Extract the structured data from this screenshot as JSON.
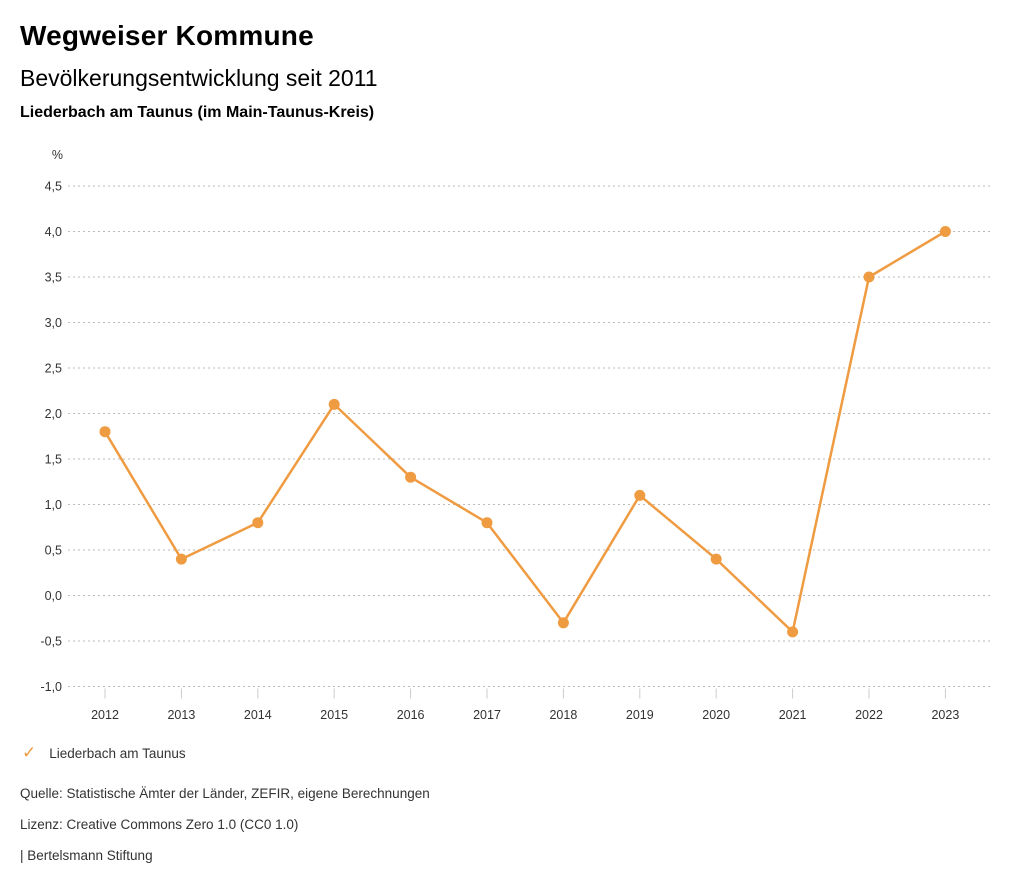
{
  "header": {
    "title": "Wegweiser Kommune",
    "subtitle": "Bevölkerungsentwicklung seit 2011",
    "region": "Liederbach am Taunus (im Main-Taunus-Kreis)"
  },
  "legend": {
    "check_icon": "✓",
    "label": "Liederbach am Taunus"
  },
  "footer": {
    "source": "Quelle: Statistische Ämter der Länder, ZEFIR, eigene Berechnungen",
    "license": "Lizenz: Creative Commons Zero 1.0 (CC0 1.0)",
    "attribution": "| Bertelsmann Stiftung"
  },
  "colors": {
    "accent_orange": "#EF9B42",
    "gridline": "#bbbbbb",
    "tick": "#cccccc",
    "axis_text": "#333333"
  },
  "chart_data": {
    "type": "line",
    "title": "Bevölkerungsentwicklung seit 2011",
    "subtitle": "Liederbach am Taunus (im Main-Taunus-Kreis)",
    "unit_label": "%",
    "categories": [
      "2012",
      "2013",
      "2014",
      "2015",
      "2016",
      "2017",
      "2018",
      "2019",
      "2020",
      "2021",
      "2022",
      "2023"
    ],
    "series": [
      {
        "name": "Liederbach am Taunus",
        "color": "#EF9B42",
        "values": [
          1.8,
          0.4,
          0.8,
          2.1,
          1.3,
          0.8,
          -0.3,
          1.1,
          0.4,
          -0.4,
          3.5,
          4.0
        ]
      }
    ],
    "ylim": [
      -1.0,
      4.5
    ],
    "y_ticks": [
      {
        "value": 4.5,
        "label": "4,5"
      },
      {
        "value": 4.0,
        "label": "4,0"
      },
      {
        "value": 3.5,
        "label": "3,5"
      },
      {
        "value": 3.0,
        "label": "3,0"
      },
      {
        "value": 2.5,
        "label": "2,5"
      },
      {
        "value": 2.0,
        "label": "2,0"
      },
      {
        "value": 1.5,
        "label": "1,5"
      },
      {
        "value": 1.0,
        "label": "1,0"
      },
      {
        "value": 0.5,
        "label": "0,5"
      },
      {
        "value": 0.0,
        "label": "0,0"
      },
      {
        "value": -0.5,
        "label": "-0,5"
      },
      {
        "value": -1.0,
        "label": "-1,0"
      }
    ],
    "grid": "horizontal-dotted",
    "legend_position": "bottom-left"
  }
}
